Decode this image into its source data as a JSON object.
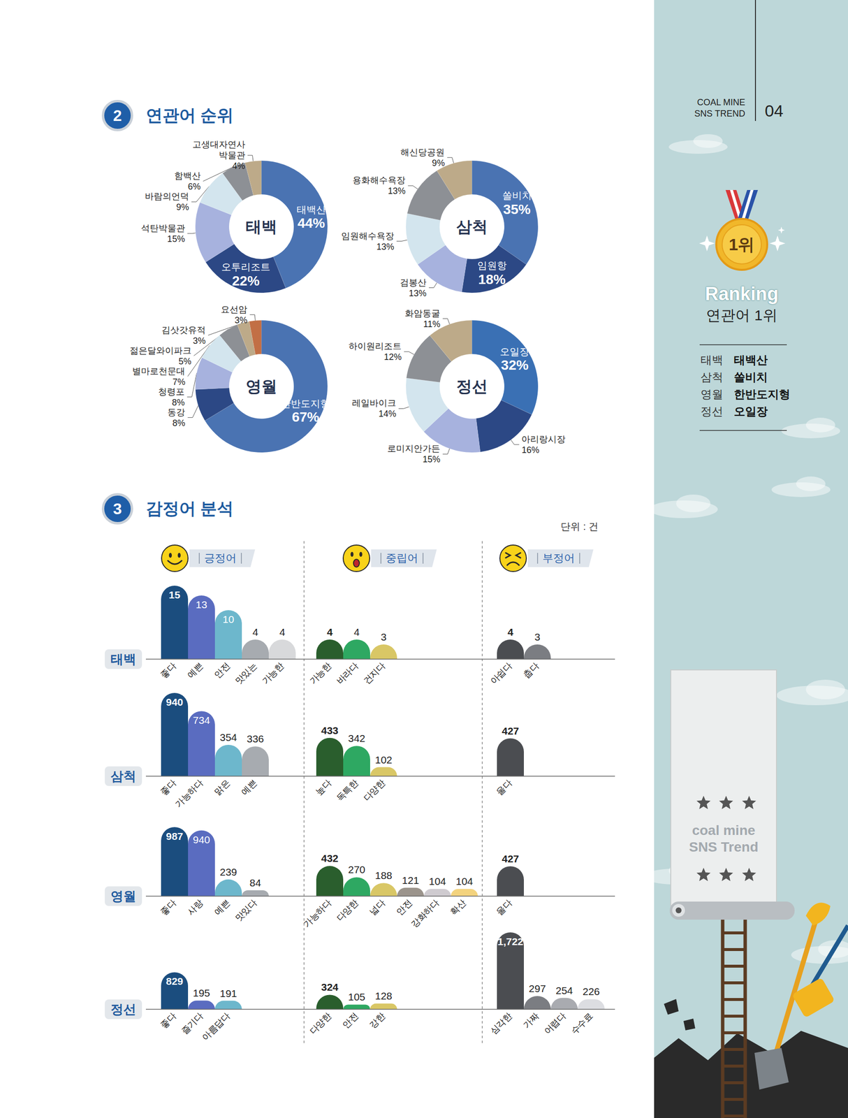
{
  "page": {
    "header": {
      "lines": [
        "COAL MINE",
        "SNS TREND"
      ],
      "page_number": "04"
    },
    "sections": [
      {
        "number": "2",
        "title": "연관어 순위"
      },
      {
        "number": "3",
        "title": "감정어 분석",
        "unit": "단위 : 건"
      }
    ],
    "sidebar": {
      "medal": "1위",
      "title": "Ranking",
      "subtitle": "연관어 1위",
      "ranking": [
        {
          "region": "태백",
          "keyword": "태백산"
        },
        {
          "region": "삼척",
          "keyword": "쏠비치"
        },
        {
          "region": "영월",
          "keyword": "한반도지형"
        },
        {
          "region": "정선",
          "keyword": "오일장"
        }
      ],
      "banner": [
        "coal mine",
        "SNS Trend"
      ]
    }
  },
  "chart_data": [
    {
      "type": "pie",
      "title": "태백",
      "data_labels": true,
      "categories": [
        "태백산",
        "오투리조트",
        "석탄박물관",
        "바람의언덕",
        "함백산",
        "고생대자연사박물관"
      ],
      "values": [
        44,
        22,
        15,
        9,
        6,
        4
      ],
      "value_labels": [
        "44%",
        "22%",
        "15%",
        "9%",
        "6%",
        "4%"
      ],
      "colors": [
        "#4a73b2",
        "#2c4885",
        "#a7b2de",
        "#d3e5ee",
        "#8d9095",
        "#bdaa89"
      ]
    },
    {
      "type": "pie",
      "title": "삼척",
      "data_labels": true,
      "categories": [
        "쏠비치",
        "임원항",
        "검봉산",
        "임원해수욕장",
        "용화해수욕장",
        "해신당공원"
      ],
      "values": [
        35,
        18,
        13,
        13,
        13,
        9
      ],
      "value_labels": [
        "35%",
        "18%",
        "13%",
        "13%",
        "13%",
        "9%"
      ],
      "colors": [
        "#4a73b2",
        "#2c4885",
        "#a7b2de",
        "#d3e5ee",
        "#8d9095",
        "#bdaa89"
      ]
    },
    {
      "type": "pie",
      "title": "영월",
      "data_labels": true,
      "categories": [
        "한반도지형",
        "동강",
        "청령포",
        "별마로천문대",
        "젊은달와이파크",
        "김삿갓유적",
        "요선암"
      ],
      "values": [
        67,
        8,
        8,
        7,
        5,
        3,
        3
      ],
      "value_labels": [
        "67%",
        "8%",
        "8%",
        "7%",
        "5%",
        "3%",
        "3%"
      ],
      "colors": [
        "#4a73b2",
        "#2c4885",
        "#a7b2de",
        "#d3e5ee",
        "#8d9095",
        "#bdaa89",
        "#c26f45"
      ]
    },
    {
      "type": "pie",
      "title": "정선",
      "data_labels": true,
      "categories": [
        "오일장",
        "아리랑시장",
        "로미지안가든",
        "레일바이크",
        "하이원리조트",
        "화암동굴"
      ],
      "values": [
        32,
        16,
        15,
        14,
        12,
        11
      ],
      "value_labels": [
        "32%",
        "16%",
        "15%",
        "14%",
        "12%",
        "11%"
      ],
      "colors": [
        "#3a70b4",
        "#2c4885",
        "#a7b2de",
        "#d3e5ee",
        "#8d9095",
        "#bdaa89"
      ]
    },
    {
      "type": "bar",
      "title": "태백",
      "ylim": [
        0,
        15
      ],
      "tick_labels": "x",
      "grid": false,
      "data_labels": true,
      "series": [
        {
          "name": "긍정어",
          "categories": [
            "좋다",
            "예쁜",
            "안전",
            "맛있는",
            "가능한"
          ],
          "values": [
            15,
            13,
            10,
            4,
            4
          ],
          "colors": [
            "#1b4d7e",
            "#5a6cc0",
            "#6db7cc",
            "#a7abb0",
            "#d8d9db"
          ]
        },
        {
          "name": "중립어",
          "categories": [
            "가능한",
            "바라다",
            "건지다"
          ],
          "values": [
            4,
            4,
            3
          ],
          "colors": [
            "#2a5e2d",
            "#2ea862",
            "#d9c766"
          ]
        },
        {
          "name": "부정어",
          "categories": [
            "아쉽다",
            "춥다"
          ],
          "values": [
            4,
            3
          ],
          "colors": [
            "#4b4d51",
            "#7b7d82"
          ]
        }
      ]
    },
    {
      "type": "bar",
      "title": "삼척",
      "ylim": [
        0,
        940
      ],
      "tick_labels": "x",
      "grid": false,
      "data_labels": true,
      "series": [
        {
          "name": "긍정어",
          "categories": [
            "좋다",
            "가능하다",
            "맑은",
            "예쁜"
          ],
          "values": [
            940,
            734,
            354,
            336
          ],
          "colors": [
            "#1b4d7e",
            "#5a6cc0",
            "#6db7cc",
            "#a7abb0"
          ]
        },
        {
          "name": "중립어",
          "categories": [
            "높다",
            "독특한",
            "다양한"
          ],
          "values": [
            433,
            342,
            102
          ],
          "colors": [
            "#2a5e2d",
            "#2ea862",
            "#d9c766"
          ]
        },
        {
          "name": "부정어",
          "categories": [
            "울다"
          ],
          "values": [
            427
          ],
          "colors": [
            "#4b4d51"
          ]
        }
      ]
    },
    {
      "type": "bar",
      "title": "영월",
      "ylim": [
        0,
        987
      ],
      "tick_labels": "x",
      "grid": false,
      "data_labels": true,
      "series": [
        {
          "name": "긍정어",
          "categories": [
            "좋다",
            "사랑",
            "예쁜",
            "맛있다"
          ],
          "values": [
            987,
            940,
            239,
            84
          ],
          "colors": [
            "#1b4d7e",
            "#5a6cc0",
            "#6db7cc",
            "#a7abb0"
          ]
        },
        {
          "name": "중립어",
          "categories": [
            "가능하다",
            "다양한",
            "넓다",
            "안전",
            "강화하다",
            "확산"
          ],
          "values": [
            432,
            270,
            188,
            121,
            104,
            104
          ],
          "colors": [
            "#2a5e2d",
            "#2ea862",
            "#d9c766",
            "#9b948c",
            "#cfcbd0",
            "#f3d37e"
          ]
        },
        {
          "name": "부정어",
          "categories": [
            "울다"
          ],
          "values": [
            427
          ],
          "colors": [
            "#4b4d51"
          ]
        }
      ]
    },
    {
      "type": "bar",
      "title": "정선",
      "ylim": [
        0,
        1722
      ],
      "tick_labels": "x",
      "grid": false,
      "data_labels": true,
      "series": [
        {
          "name": "긍정어",
          "categories": [
            "좋다",
            "즐기다",
            "아름답다"
          ],
          "values": [
            829,
            195,
            191
          ],
          "colors": [
            "#1b4d7e",
            "#5a6cc0",
            "#6db7cc"
          ]
        },
        {
          "name": "중립어",
          "categories": [
            "다양한",
            "안전",
            "강한"
          ],
          "values": [
            324,
            105,
            128
          ],
          "colors": [
            "#2a5e2d",
            "#2ea862",
            "#d9c766"
          ]
        },
        {
          "name": "부정어",
          "categories": [
            "심각한",
            "가짜",
            "어렵다",
            "수수료"
          ],
          "values": [
            1722,
            297,
            254,
            226
          ],
          "value_labels": [
            "1,722",
            "297",
            "254",
            "226"
          ],
          "colors": [
            "#4b4d51",
            "#7b7d82",
            "#a9abb0",
            "#dcdde1"
          ]
        }
      ]
    }
  ]
}
